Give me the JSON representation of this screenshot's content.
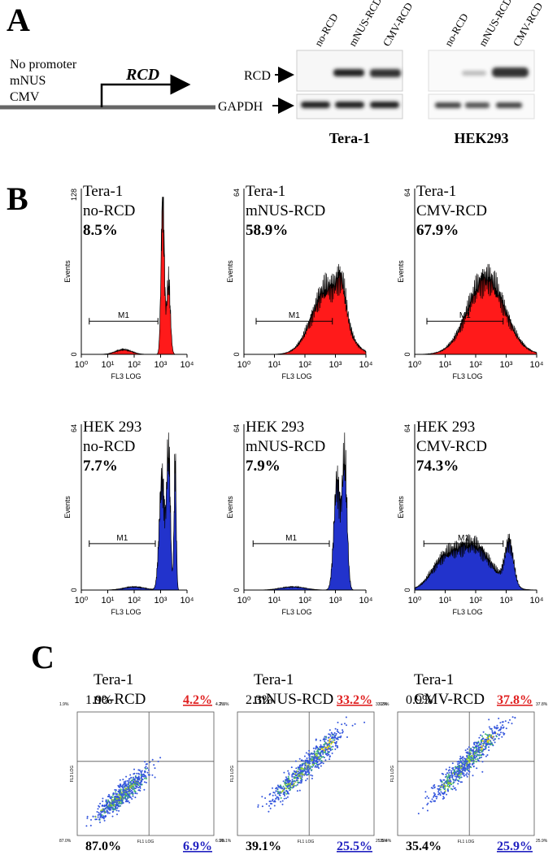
{
  "panel_a": {
    "label": "A",
    "promoters": [
      "No promoter",
      "mNUS",
      "CMV"
    ],
    "gene": "RCD",
    "lanes": [
      "no-RCD",
      "mNUS-RCD",
      "CMV-RCD"
    ],
    "proteins": [
      "RCD",
      "GAPDH"
    ],
    "cell_lines": [
      "Tera-1",
      "HEK293"
    ]
  },
  "panel_b": {
    "label": "B",
    "x_axis_label": "FL3 LOG",
    "y_axis_label": "Events",
    "gate_label": "M1",
    "xticks": [
      "10⁰",
      "10¹",
      "10²",
      "10³",
      "10⁴"
    ],
    "histograms": [
      {
        "cell_line": "Tera-1",
        "construct": "no-RCD",
        "percent": "8.5%",
        "ymax": "128",
        "ymin": "0",
        "color": "#ff1a1a"
      },
      {
        "cell_line": "Tera-1",
        "construct": "mNUS-RCD",
        "percent": "58.9%",
        "ymax": "64",
        "ymin": "0",
        "color": "#ff1a1a"
      },
      {
        "cell_line": "Tera-1",
        "construct": "CMV-RCD",
        "percent": "67.9%",
        "ymax": "64",
        "ymin": "0",
        "color": "#ff1a1a"
      },
      {
        "cell_line": "HEK 293",
        "construct": "no-RCD",
        "percent": "7.7%",
        "ymax": "64",
        "ymin": "0",
        "color": "#2233cc"
      },
      {
        "cell_line": "HEK 293",
        "construct": "mNUS-RCD",
        "percent": "7.9%",
        "ymax": "64",
        "ymin": "0",
        "color": "#2233cc"
      },
      {
        "cell_line": "HEK 293",
        "construct": "CMV-RCD",
        "percent": "74.3%",
        "ymax": "64",
        "ymin": "0",
        "color": "#2233cc"
      }
    ]
  },
  "panel_c": {
    "label": "C",
    "x_axis_label": "FL1 LOG",
    "y_axis_label": "FL3 LOG",
    "plots": [
      {
        "cell_line": "Tera-1",
        "construct": "no-RCD",
        "upper_left": "1.9%",
        "upper_right": "4.2%",
        "lower_left": "87.0%",
        "lower_right": "6.9%"
      },
      {
        "cell_line": "Tera-1",
        "construct": "mNUS-RCD",
        "upper_left": "2.3%",
        "upper_right": "33.2%",
        "lower_left": "39.1%",
        "lower_right": "25.5%"
      },
      {
        "cell_line": "Tera-1",
        "construct": "CMV-RCD",
        "upper_left": "0.9%",
        "upper_right": "37.8%",
        "lower_left": "35.4%",
        "lower_right": "25.9%"
      }
    ]
  }
}
